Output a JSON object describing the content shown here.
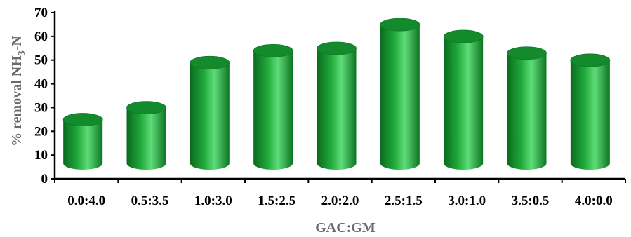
{
  "chart_data": {
    "type": "bar",
    "style": "3d-cylinder",
    "title": "",
    "xlabel": "GAC:GM",
    "ylabel_parts": {
      "main": "% removal NH",
      "sub": "3",
      "tail": "-N"
    },
    "categories": [
      "0.0:4.0",
      "0.5:3.5",
      "1.0:3.0",
      "1.5:2.5",
      "2.0:2.0",
      "2.5:1.5",
      "3.0:1.0",
      "3.5:0.5",
      "4.0:0.0"
    ],
    "values": [
      27,
      32,
      51,
      56,
      57,
      67,
      62,
      55,
      52
    ],
    "ylim": [
      0,
      70
    ],
    "yticks": [
      0,
      10,
      20,
      30,
      40,
      50,
      60,
      70
    ],
    "grid": false,
    "legend": "none",
    "colors": {
      "bar_dark": "#0b6a1e",
      "bar_mid": "#1fa83a",
      "bar_light": "#5fdc78",
      "bar_top": "#138a2c",
      "axis": "#000000",
      "ylabel": "#6b6b6b",
      "xlabel": "#6b6b6b"
    }
  }
}
